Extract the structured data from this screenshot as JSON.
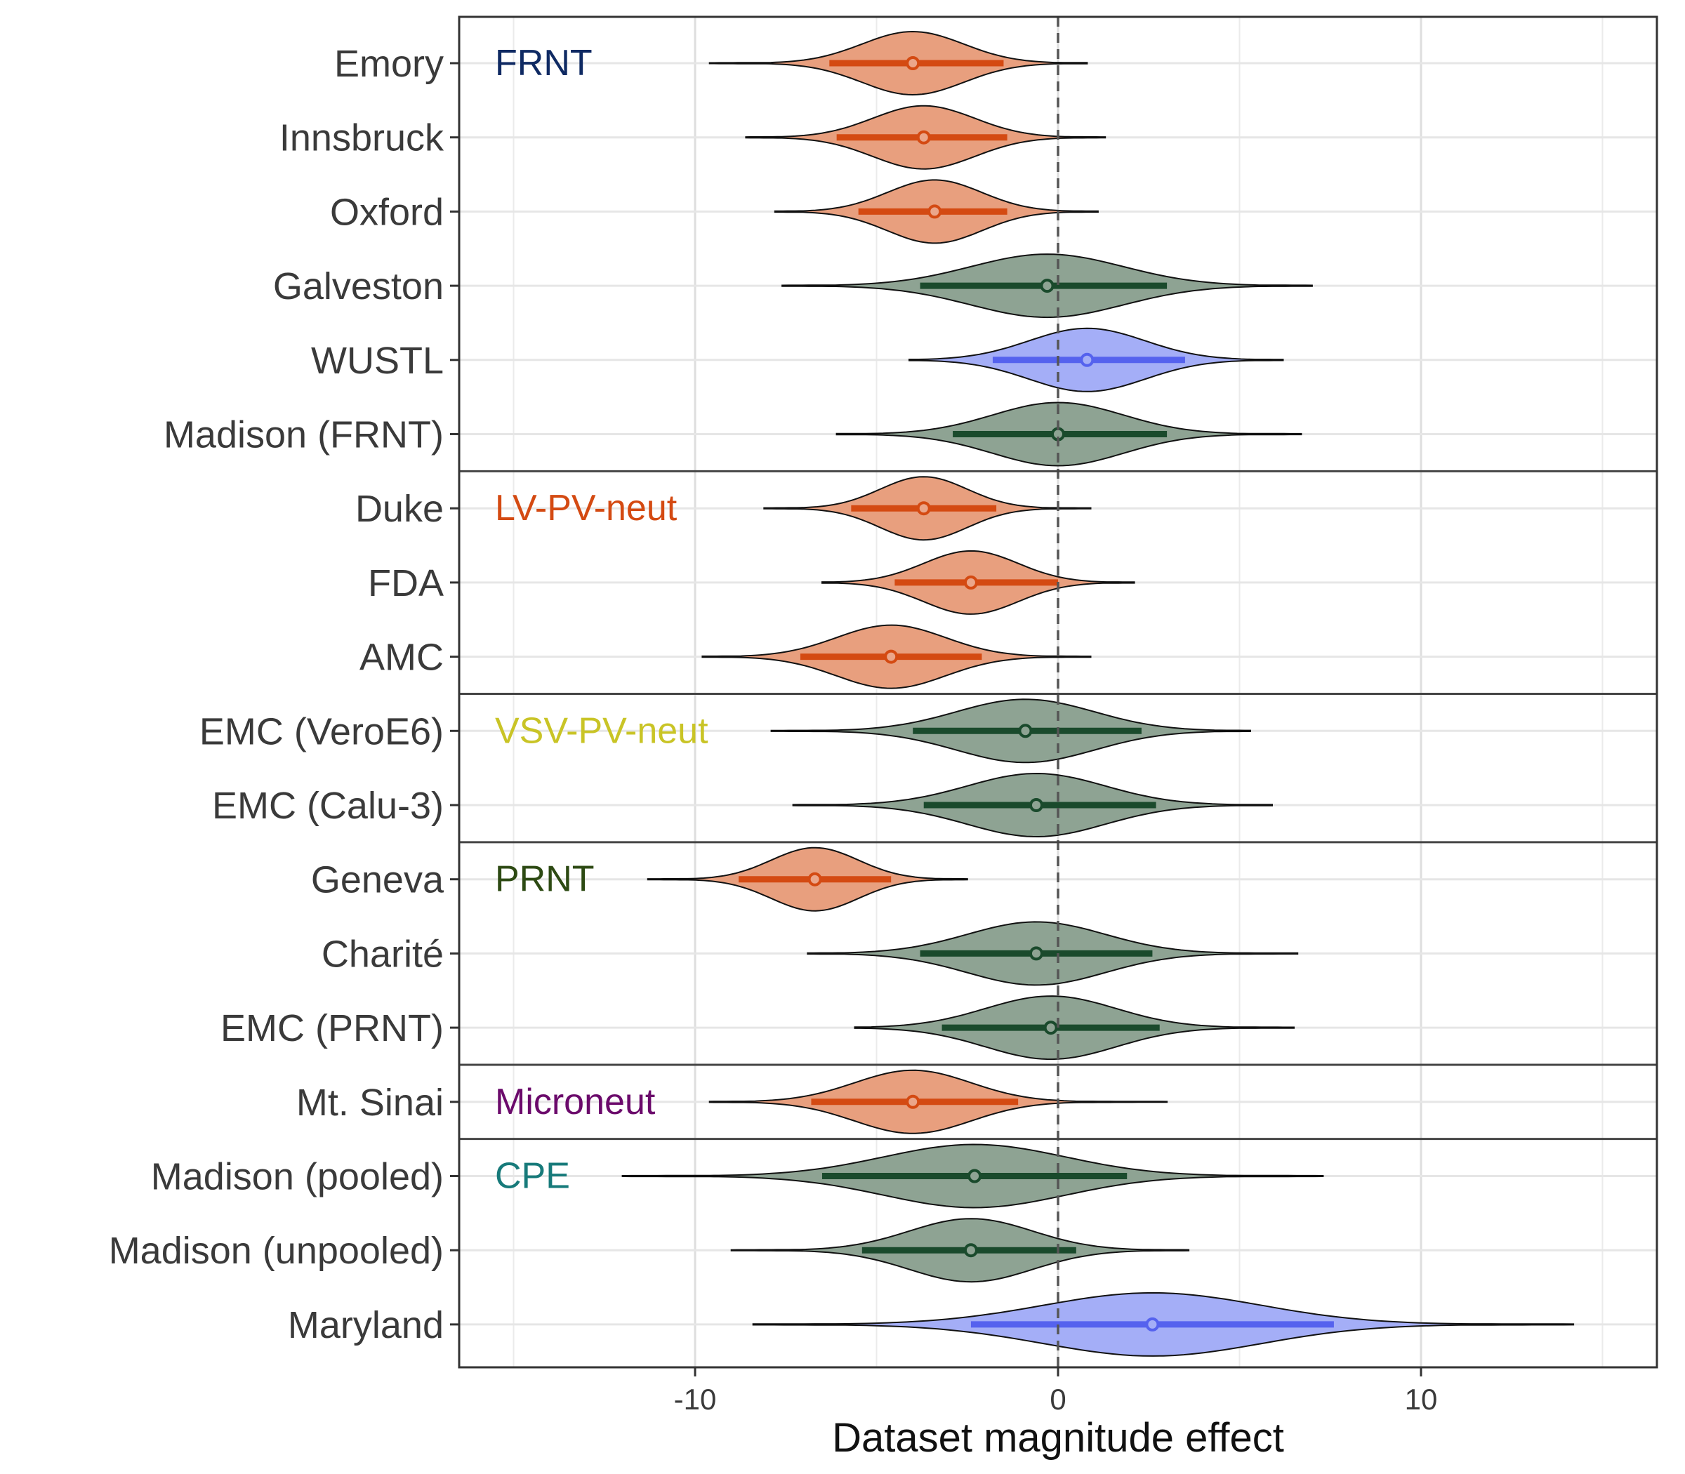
{
  "chart_data": {
    "type": "violin",
    "title": "",
    "xlabel": "Dataset magnitude effect",
    "ylabel": "",
    "xlim": [
      -16.5,
      16.5
    ],
    "xticks": [
      -10,
      0,
      10
    ],
    "xtick_labels": [
      "-10",
      "0",
      "10"
    ],
    "reference_line_x": 0,
    "grid": true,
    "colors": {
      "orange": {
        "fill": "#E89F7E",
        "line": "#D44A12",
        "dot": "#EBA68A"
      },
      "green": {
        "fill": "#8EA393",
        "line": "#1A4A2C",
        "dot": "#8EA393"
      },
      "blue": {
        "fill": "#A4AEF7",
        "line": "#5562EE",
        "dot": "#A4AEF7"
      }
    },
    "groups": [
      {
        "label": "FRNT",
        "color": "#0F2A63",
        "rows": [
          {
            "name": "Emory",
            "median": -4.0,
            "q_low": -6.3,
            "q_high": -1.5,
            "min": -9.6,
            "max": 0.8,
            "spread": 1.4,
            "color": "orange"
          },
          {
            "name": "Innsbruck",
            "median": -3.7,
            "q_low": -6.1,
            "q_high": -1.4,
            "min": -8.6,
            "max": 1.3,
            "spread": 1.4,
            "color": "orange"
          },
          {
            "name": "Oxford",
            "median": -3.4,
            "q_low": -5.5,
            "q_high": -1.4,
            "min": -7.8,
            "max": 1.1,
            "spread": 1.3,
            "color": "orange"
          },
          {
            "name": "Galveston",
            "median": -0.3,
            "q_low": -3.8,
            "q_high": 3.0,
            "min": -7.6,
            "max": 7.0,
            "spread": 2.1,
            "color": "green"
          },
          {
            "name": "WUSTL",
            "median": 0.8,
            "q_low": -1.8,
            "q_high": 3.5,
            "min": -4.1,
            "max": 6.2,
            "spread": 1.6,
            "color": "blue"
          },
          {
            "name": "Madison (FRNT)",
            "median": 0.0,
            "q_low": -2.9,
            "q_high": 3.0,
            "min": -6.1,
            "max": 6.7,
            "spread": 1.8,
            "color": "green"
          }
        ]
      },
      {
        "label": "LV-PV-neut",
        "color": "#D44A12",
        "rows": [
          {
            "name": "Duke",
            "median": -3.7,
            "q_low": -5.7,
            "q_high": -1.7,
            "min": -8.1,
            "max": 0.9,
            "spread": 1.2,
            "color": "orange"
          },
          {
            "name": "FDA",
            "median": -2.4,
            "q_low": -4.5,
            "q_high": 0.0,
            "min": -6.5,
            "max": 2.1,
            "spread": 1.3,
            "color": "orange"
          },
          {
            "name": "AMC",
            "median": -4.6,
            "q_low": -7.1,
            "q_high": -2.1,
            "min": -9.8,
            "max": 0.9,
            "spread": 1.5,
            "color": "orange"
          }
        ]
      },
      {
        "label": "VSV-PV-neut",
        "color": "#C9C426",
        "rows": [
          {
            "name": "EMC (VeroE6)",
            "median": -0.9,
            "q_low": -4.0,
            "q_high": 2.3,
            "min": -7.9,
            "max": 5.3,
            "spread": 1.9,
            "color": "green"
          },
          {
            "name": "EMC (Calu-3)",
            "median": -0.6,
            "q_low": -3.7,
            "q_high": 2.7,
            "min": -7.3,
            "max": 5.9,
            "spread": 1.9,
            "color": "green"
          }
        ]
      },
      {
        "label": "PRNT",
        "color": "#2D4A13",
        "rows": [
          {
            "name": "Geneva",
            "median": -6.7,
            "q_low": -8.8,
            "q_high": -4.6,
            "min": -11.3,
            "max": -2.5,
            "spread": 1.2,
            "color": "orange"
          },
          {
            "name": "Charité",
            "median": -0.6,
            "q_low": -3.8,
            "q_high": 2.6,
            "min": -6.9,
            "max": 6.6,
            "spread": 1.9,
            "color": "green"
          },
          {
            "name": "EMC (PRNT)",
            "median": -0.2,
            "q_low": -3.2,
            "q_high": 2.8,
            "min": -5.6,
            "max": 6.5,
            "spread": 1.8,
            "color": "green"
          }
        ]
      },
      {
        "label": "Microneut",
        "color": "#6B0A6B",
        "rows": [
          {
            "name": "Mt. Sinai",
            "median": -4.0,
            "q_low": -6.8,
            "q_high": -1.1,
            "min": -9.6,
            "max": 3.0,
            "spread": 1.6,
            "color": "orange"
          }
        ]
      },
      {
        "label": "CPE",
        "color": "#177A7A",
        "rows": [
          {
            "name": "Madison (pooled)",
            "median": -2.3,
            "q_low": -6.5,
            "q_high": 1.9,
            "min": -12.0,
            "max": 7.3,
            "spread": 2.5,
            "color": "green"
          },
          {
            "name": "Madison (unpooled)",
            "median": -2.4,
            "q_low": -5.4,
            "q_high": 0.5,
            "min": -9.0,
            "max": 3.6,
            "spread": 1.7,
            "color": "green"
          },
          {
            "name": "Maryland",
            "median": 2.6,
            "q_low": -2.4,
            "q_high": 7.6,
            "min": -8.4,
            "max": 14.2,
            "spread": 3.0,
            "color": "blue"
          }
        ]
      }
    ]
  }
}
